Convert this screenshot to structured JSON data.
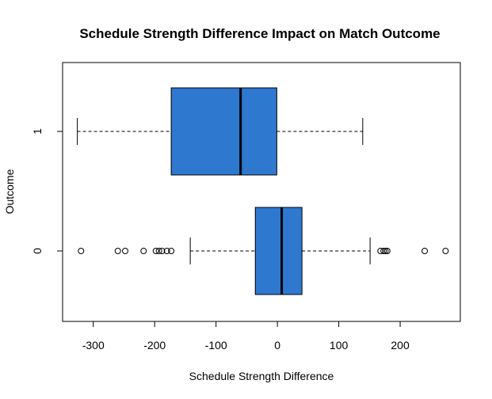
{
  "chart_data": {
    "type": "boxplot",
    "orientation": "horizontal",
    "title": "Schedule Strength Difference Impact on Match Outcome",
    "xlabel": "Schedule Strength Difference",
    "ylabel": "Outcome",
    "xlim": [
      -350,
      298
    ],
    "x_ticks": [
      -300,
      -200,
      -100,
      0,
      100,
      200
    ],
    "x_tick_labels": [
      "-300",
      "-200",
      "-100",
      "0",
      "100",
      "200"
    ],
    "categories": [
      "0",
      "1"
    ],
    "box_color": "#2E78CF",
    "series": [
      {
        "category": "0",
        "whisker_low": -142,
        "q1": -36,
        "median": 7,
        "q3": 40,
        "whisker_high": 151,
        "outliers": [
          -320,
          -260,
          -248,
          -218,
          -198,
          -193,
          -188,
          -180,
          -173,
          168,
          173,
          176,
          179,
          240,
          274
        ]
      },
      {
        "category": "1",
        "whisker_low": -326,
        "q1": -173,
        "median": -60,
        "q3": -1,
        "whisker_high": 139,
        "outliers": []
      }
    ]
  }
}
